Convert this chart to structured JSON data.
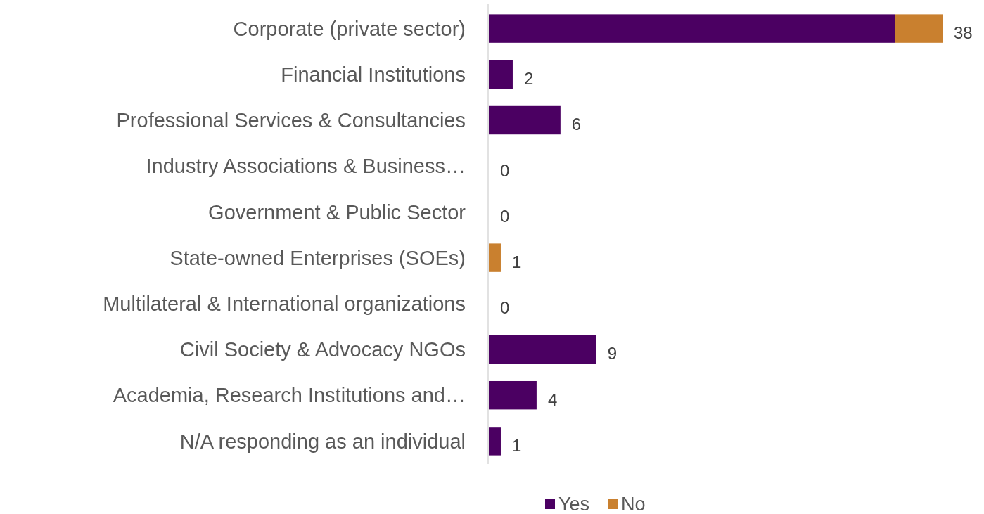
{
  "chart_data": {
    "type": "bar",
    "orientation": "horizontal",
    "stacked": true,
    "categories": [
      "Corporate (private sector)",
      "Financial Institutions",
      "Professional Services & Consultancies",
      "Industry Associations & Business…",
      "Government & Public Sector",
      "State-owned Enterprises (SOEs)",
      "Multilateral & International organizations",
      "Civil Society & Advocacy NGOs",
      "Academia, Research Institutions and…",
      "N/A responding as an individual"
    ],
    "series": [
      {
        "name": "Yes",
        "color": "#4b0062",
        "values": [
          34,
          2,
          6,
          0,
          0,
          0,
          0,
          9,
          4,
          1
        ],
        "value_labels": [
          null,
          "2",
          "6",
          "0",
          "0",
          null,
          "0",
          "9",
          "4",
          "1"
        ]
      },
      {
        "name": "No",
        "color": "#c9802f",
        "values": [
          4,
          0,
          0,
          0,
          0,
          1,
          0,
          0,
          0,
          0
        ],
        "value_labels": [
          null,
          null,
          null,
          null,
          null,
          "1",
          null,
          null,
          null,
          null
        ]
      }
    ],
    "totals": [
      "38",
      null,
      null,
      null,
      null,
      null,
      null,
      null,
      null,
      null
    ],
    "legend": "bottom"
  }
}
